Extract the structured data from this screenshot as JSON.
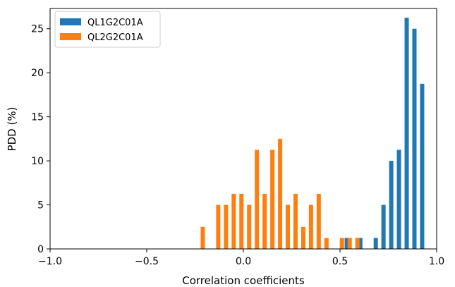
{
  "chart_data": {
    "type": "bar",
    "title": "",
    "xlabel": "Correlation coefficients",
    "ylabel": "PDD (%)",
    "xlim": [
      -1.0,
      1.0
    ],
    "ylim": [
      0,
      27.3
    ],
    "xticks": [
      -1.0,
      -0.5,
      0.0,
      0.5,
      1.0
    ],
    "xtick_labels": [
      "−1.0",
      "−0.5",
      "0.0",
      "0.5",
      "1.0"
    ],
    "yticks": [
      0,
      5,
      10,
      15,
      20,
      25
    ],
    "ytick_labels": [
      "0",
      "5",
      "10",
      "15",
      "20",
      "25"
    ],
    "grid": false,
    "legend_position": "top-left",
    "series": [
      {
        "name": "QL1G2C01A",
        "color": "#1f77b4",
        "x": [
          0.535,
          0.605,
          0.685,
          0.725,
          0.765,
          0.805,
          0.845,
          0.885,
          0.925
        ],
        "values": [
          1.25,
          1.25,
          1.25,
          5.0,
          10.0,
          11.25,
          26.25,
          25.0,
          18.75
        ]
      },
      {
        "name": "QL2G2C01A",
        "color": "#ff7f0e",
        "x": [
          -0.21,
          -0.13,
          -0.09,
          -0.05,
          -0.01,
          0.03,
          0.07,
          0.11,
          0.15,
          0.19,
          0.23,
          0.27,
          0.31,
          0.35,
          0.39,
          0.43,
          0.51,
          0.55,
          0.59
        ],
        "values": [
          2.5,
          5.0,
          5.0,
          6.25,
          6.25,
          5.0,
          11.25,
          6.25,
          11.25,
          12.5,
          5.0,
          6.25,
          2.5,
          5.0,
          6.25,
          1.25,
          1.25,
          1.25,
          1.25
        ]
      }
    ]
  }
}
